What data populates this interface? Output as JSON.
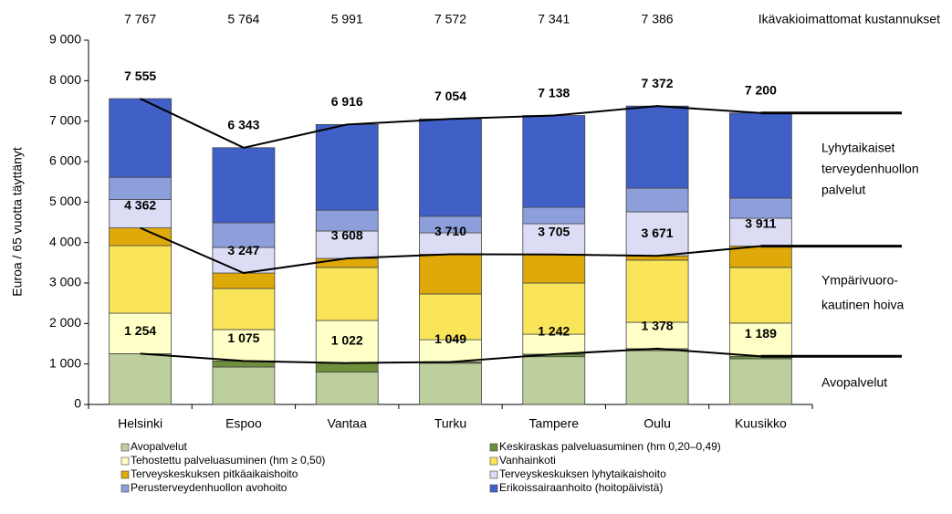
{
  "chart_data": {
    "type": "stacked_bar",
    "ylabel": "Euroa / 65 vuotta täyttänyt",
    "categories": [
      "Helsinki",
      "Espoo",
      "Vantaa",
      "Turku",
      "Tampere",
      "Oulu",
      "Kuusikko"
    ],
    "ylim": [
      0,
      9000
    ],
    "yticks": [
      0,
      {
        "value": 1000,
        "label": "1 000"
      },
      {
        "value": 2000,
        "label": "2 000"
      },
      {
        "value": 3000,
        "label": "3 000"
      },
      {
        "value": 4000,
        "label": "4 000"
      },
      {
        "value": 5000,
        "label": "5 000"
      },
      {
        "value": 6000,
        "label": "6 000"
      },
      {
        "value": 7000,
        "label": "7 000"
      },
      {
        "value": 8000,
        "label": "8 000"
      },
      {
        "value": 9000,
        "label": "9 000"
      }
    ],
    "grid": false,
    "series": [
      {
        "name": "Avopalvelut",
        "color": "#bccf9d",
        "values": [
          1254,
          925,
          800,
          1020,
          1180,
          1330,
          1130
        ]
      },
      {
        "name": "Keskiraskas palveluasuminen (hm 0,20–0,49)",
        "color": "#6f8f3c",
        "values": [
          0,
          150,
          222,
          29,
          62,
          48,
          59
        ]
      },
      {
        "name": "Tehostettu palveluasuminen (hm ≥ 0,50)",
        "color": "#ffffc8",
        "values": [
          1000,
          775,
          1053,
          551,
          493,
          652,
          821
        ]
      },
      {
        "name": "Vanhainkoti",
        "color": "#fae55a",
        "values": [
          1670,
          1015,
          1310,
          1130,
          1265,
          1535,
          1375
        ]
      },
      {
        "name": "Terveyskeskuksen pitkäaikaishoito",
        "color": "#e0a90a",
        "values": [
          438,
          382,
          223,
          980,
          705,
          106,
          526
        ]
      },
      {
        "name": "Terveyskeskuksen lyhytaikaishoito",
        "color": "#dcdcf5",
        "values": [
          700,
          633,
          677,
          530,
          760,
          1089,
          689
        ]
      },
      {
        "name": "Perusterveydenhuollon avohoito",
        "color": "#8d9fdb",
        "values": [
          550,
          610,
          515,
          410,
          405,
          585,
          500
        ]
      },
      {
        "name": "Erikoissairaanhoito (hoitopäivistä)",
        "color": "#4060c8",
        "values": [
          1943,
          1853,
          2116,
          2404,
          2268,
          2027,
          2100
        ]
      }
    ],
    "lines": [
      {
        "label": [
          "Lyhytaikaiset",
          "terveydenhuollon",
          "palvelut"
        ],
        "values": [
          7555,
          6343,
          6916,
          7054,
          7138,
          7372,
          7200
        ],
        "value_labels": [
          "7 555",
          "6 343",
          "6 916",
          "7 054",
          "7 138",
          "7 372",
          "7 200"
        ]
      },
      {
        "label": [
          "Ympärivuoro-",
          "kautinen hoiva"
        ],
        "values": [
          4362,
          3247,
          3608,
          3710,
          3705,
          3671,
          3911
        ],
        "value_labels": [
          "4 362",
          "3 247",
          "3 608",
          "3 710",
          "3 705",
          "3 671",
          "3 911"
        ]
      },
      {
        "label": [
          "Avopalvelut"
        ],
        "values": [
          1254,
          1075,
          1022,
          1049,
          1242,
          1378,
          1189
        ],
        "value_labels": [
          "1 254",
          "1 075",
          "1 022",
          "1 049",
          "1 242",
          "1 378",
          "1 189"
        ]
      }
    ],
    "top_labels": {
      "label": "Ikävakioimattomat kustannukset",
      "values": [
        7767,
        5764,
        5991,
        7572,
        7341,
        7386
      ],
      "value_labels": [
        "7 767",
        "5 764",
        "5 991",
        "7 572",
        "7 341",
        "7 386"
      ]
    }
  }
}
